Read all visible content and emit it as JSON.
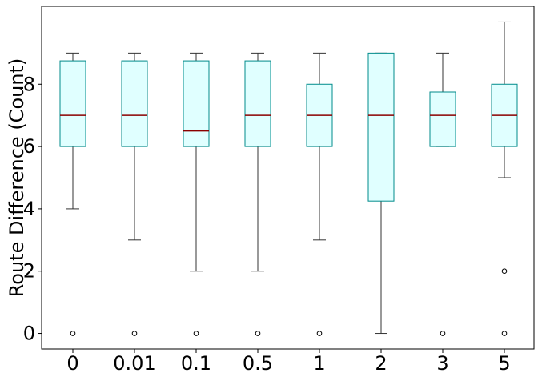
{
  "chart_data": {
    "type": "box",
    "title": "",
    "xlabel": "",
    "ylabel": "Route Difference (Count)",
    "categories": [
      "0",
      "0.01",
      "0.1",
      "0.5",
      "1",
      "2",
      "3",
      "5"
    ],
    "boxes": [
      {
        "category": "0",
        "whisker_low": 4,
        "q1": 6,
        "median": 7,
        "q3": 8.75,
        "whisker_high": 9,
        "outliers": [
          0
        ]
      },
      {
        "category": "0.01",
        "whisker_low": 3,
        "q1": 6,
        "median": 7,
        "q3": 8.75,
        "whisker_high": 9,
        "outliers": [
          0
        ]
      },
      {
        "category": "0.1",
        "whisker_low": 2,
        "q1": 6,
        "median": 6.5,
        "q3": 8.75,
        "whisker_high": 9,
        "outliers": [
          0
        ]
      },
      {
        "category": "0.5",
        "whisker_low": 2,
        "q1": 6,
        "median": 7,
        "q3": 8.75,
        "whisker_high": 9,
        "outliers": [
          0
        ]
      },
      {
        "category": "1",
        "whisker_low": 3,
        "q1": 6,
        "median": 7,
        "q3": 8,
        "whisker_high": 9,
        "outliers": [
          0
        ]
      },
      {
        "category": "2",
        "whisker_low": 0,
        "q1": 4.25,
        "median": 7,
        "q3": 9,
        "whisker_high": 9,
        "outliers": []
      },
      {
        "category": "3",
        "whisker_low": 6,
        "q1": 6,
        "median": 7,
        "q3": 7.75,
        "whisker_high": 9,
        "outliers": [
          0
        ]
      },
      {
        "category": "5",
        "whisker_low": 5,
        "q1": 6,
        "median": 7,
        "q3": 8,
        "whisker_high": 10,
        "outliers": [
          2,
          0
        ]
      }
    ],
    "y_ticks": [
      0,
      2,
      4,
      6,
      8
    ],
    "ylim": [
      -0.5,
      10.5
    ],
    "grid": false,
    "colors": {
      "box_fill": "#e0ffff",
      "box_edge": "#008b8b",
      "median": "#8b0000",
      "whisker": "#333333",
      "outlier_edge": "#000000",
      "axes": "#000000"
    }
  }
}
